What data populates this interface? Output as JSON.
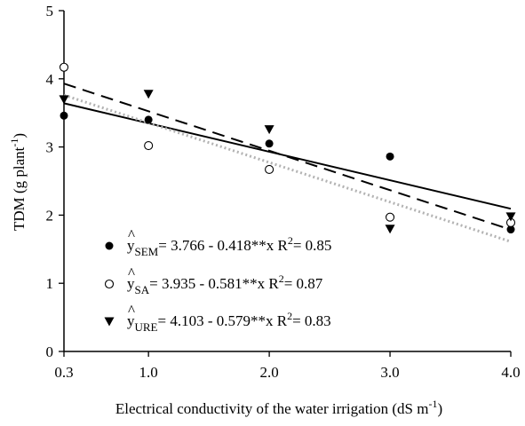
{
  "chart_data": {
    "type": "scatter",
    "xlabel": "Electrical conductivity of the water irrigation (dS m",
    "xlabel_sup": "-1",
    "xlabel_close": ")",
    "ylabel": "TDM (g plant",
    "ylabel_sup": "-1",
    "ylabel_close": ")",
    "xlim": [
      0.3,
      4.0
    ],
    "ylim": [
      0,
      5
    ],
    "x_ticks": [
      0.3,
      1.0,
      2.0,
      3.0,
      4.0
    ],
    "x_tick_labels": [
      "0.3",
      "1.0",
      "2.0",
      "3.0",
      "4.0"
    ],
    "y_ticks": [
      0,
      1,
      2,
      3,
      4,
      5
    ],
    "y_tick_labels": [
      "0",
      "1",
      "2",
      "3",
      "4",
      "5"
    ],
    "grid": false,
    "legend_position": "bottom-left",
    "series": [
      {
        "name": "SEM",
        "marker": "filled-circle",
        "line_style": "solid",
        "x": [
          0.3,
          1.0,
          2.0,
          3.0,
          4.0
        ],
        "y": [
          3.46,
          3.4,
          3.05,
          2.86,
          1.79
        ],
        "fit": {
          "intercept": 3.766,
          "slope": -0.418
        },
        "equation": {
          "hat": "^",
          "y": "y",
          "subscript": "SEM",
          "text": "= 3.766 - 0.418**x  R",
          "r2_sup": "2",
          "r2_value": "= 0.85"
        }
      },
      {
        "name": "SA",
        "marker": "open-circle",
        "line_style": "dotted",
        "x": [
          0.3,
          1.0,
          2.0,
          3.0,
          4.0
        ],
        "y": [
          4.17,
          3.02,
          2.67,
          1.97,
          1.89
        ],
        "fit": {
          "intercept": 3.935,
          "slope": -0.581
        },
        "equation": {
          "hat": "^",
          "y": "y",
          "subscript": "SA",
          "text": "= 3.935 - 0.581**x  R",
          "r2_sup": "2",
          "r2_value": "= 0.87"
        }
      },
      {
        "name": "URE",
        "marker": "filled-triangle-down",
        "line_style": "dashed",
        "x": [
          0.3,
          1.0,
          2.0,
          3.0,
          4.0
        ],
        "y": [
          3.7,
          3.78,
          3.26,
          1.8,
          1.98
        ],
        "fit": {
          "intercept": 4.103,
          "slope": -0.579
        },
        "equation": {
          "hat": "^",
          "y": "y",
          "subscript": "URE",
          "text": "= 4.103 - 0.579**x  R",
          "r2_sup": "2",
          "r2_value": "= 0.83"
        }
      }
    ]
  },
  "colors": {
    "ink": "#000000",
    "sa_fit_line": "#b3b3b3",
    "background": "#ffffff"
  }
}
